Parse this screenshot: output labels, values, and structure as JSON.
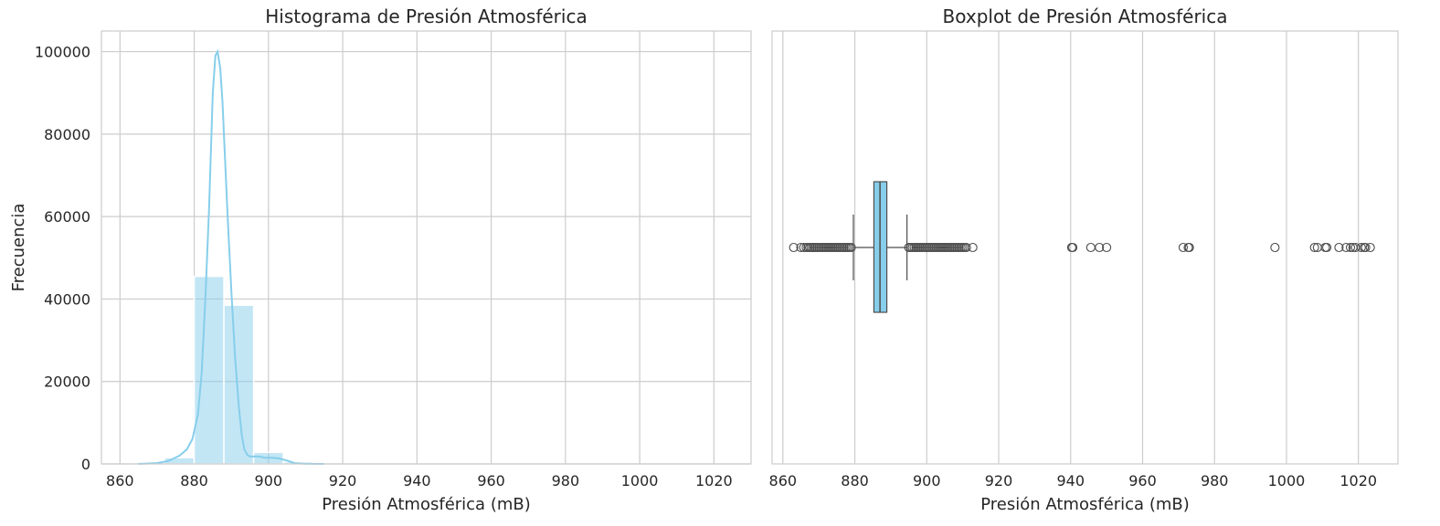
{
  "chart_data": [
    {
      "type": "histogram",
      "title": "Histograma de Presión Atmosférica",
      "xlabel": "Presión Atmosférica (mB)",
      "ylabel": "Frecuencia",
      "xlim": [
        855,
        1030
      ],
      "ylim": [
        0,
        105000
      ],
      "xticks": [
        860,
        880,
        900,
        920,
        940,
        960,
        980,
        1000,
        1020
      ],
      "yticks": [
        0,
        20000,
        40000,
        60000,
        80000,
        100000
      ],
      "grid": true,
      "bar_color": "#87CEEB",
      "bins": [
        {
          "x0": 864,
          "x1": 872,
          "count": 400
        },
        {
          "x0": 872,
          "x1": 880,
          "count": 1500
        },
        {
          "x0": 880,
          "x1": 888,
          "count": 45500
        },
        {
          "x0": 888,
          "x1": 896,
          "count": 38500
        },
        {
          "x0": 896,
          "x1": 904,
          "count": 2800
        },
        {
          "x0": 904,
          "x1": 912,
          "count": 500
        }
      ],
      "kde": {
        "color": "#87CEEB",
        "x": [
          865,
          870,
          873,
          876,
          878,
          879.5,
          881,
          882,
          883,
          884,
          885,
          885.7,
          886.3,
          887,
          887.6,
          888.3,
          889,
          890,
          891,
          892,
          892.8,
          893.5,
          894.3,
          895,
          896,
          897.5,
          899,
          901,
          903,
          905,
          907,
          910,
          915
        ],
        "y": [
          0,
          200,
          700,
          2000,
          3500,
          6000,
          12000,
          22000,
          40000,
          62000,
          90000,
          99000,
          100000,
          96000,
          88000,
          74000,
          60000,
          42000,
          26000,
          14000,
          7000,
          3500,
          2200,
          1800,
          1800,
          1800,
          1500,
          1500,
          1300,
          800,
          200,
          40,
          0
        ]
      }
    },
    {
      "type": "boxplot",
      "title": "Boxplot de Presión Atmosférica",
      "xlabel": "Presión Atmosférica (mB)",
      "xlim": [
        857,
        1031
      ],
      "xticks": [
        860,
        880,
        900,
        920,
        940,
        960,
        980,
        1000,
        1020
      ],
      "grid": true,
      "box_color": "#87CEEB",
      "q1": 885.3,
      "median": 887.0,
      "q3": 888.9,
      "whisker_low": 879.6,
      "whisker_high": 894.5,
      "outliers": [
        863,
        865,
        865.8,
        866.5,
        867,
        867.5,
        868,
        868.5,
        869,
        869.5,
        870,
        870.5,
        871,
        871.5,
        872,
        872.5,
        873,
        873.5,
        874,
        874.5,
        875,
        875.5,
        876,
        876.5,
        877,
        877.5,
        878,
        878.5,
        879,
        895,
        895.5,
        896,
        896.5,
        897,
        897.5,
        898,
        898.5,
        899,
        899.5,
        900,
        900.5,
        901,
        901.5,
        902,
        902.5,
        903,
        903.5,
        904,
        904.5,
        905,
        905.5,
        906,
        906.5,
        907,
        907.5,
        908,
        908.5,
        909,
        909.5,
        910,
        910.5,
        911,
        912.8,
        940.3,
        940.6,
        945.6,
        948,
        950,
        971.3,
        972.7,
        973,
        996.8,
        1007.8,
        1008.6,
        1010.8,
        1011.2,
        1014.6,
        1016.6,
        1017.8,
        1018.5,
        1019.2,
        1020.8,
        1021.6,
        1022,
        1023.3
      ]
    }
  ]
}
